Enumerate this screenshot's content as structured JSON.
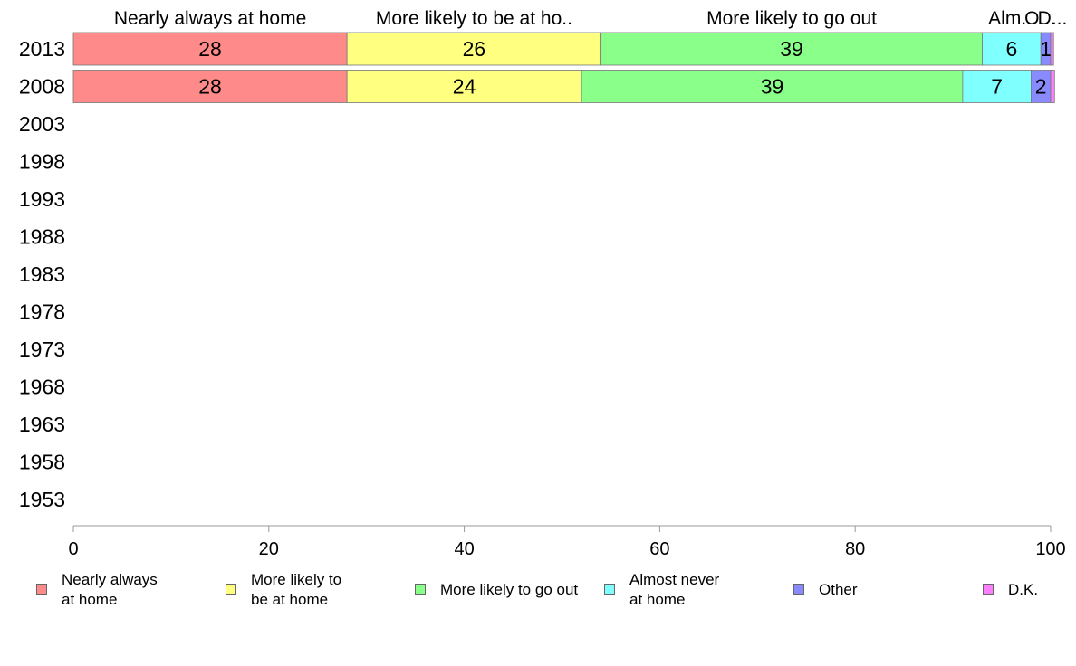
{
  "chart_data": {
    "type": "bar",
    "orientation": "horizontal",
    "stacked": true,
    "categories": [
      "2013",
      "2008",
      "2003",
      "1998",
      "1993",
      "1988",
      "1983",
      "1978",
      "1973",
      "1968",
      "1963",
      "1958",
      "1953"
    ],
    "series": [
      {
        "name": "Nearly always at home",
        "header": "Nearly always at home",
        "color": "#ff8a8a",
        "values": [
          28,
          28,
          null,
          null,
          null,
          null,
          null,
          null,
          null,
          null,
          null,
          null,
          null
        ]
      },
      {
        "name": "More likely to be at home",
        "header": "More likely to be at ho..",
        "color": "#ffff80",
        "values": [
          26,
          24,
          null,
          null,
          null,
          null,
          null,
          null,
          null,
          null,
          null,
          null,
          null
        ]
      },
      {
        "name": "More likely to go out",
        "header": "More likely to go out",
        "color": "#8aff8a",
        "values": [
          39,
          39,
          null,
          null,
          null,
          null,
          null,
          null,
          null,
          null,
          null,
          null,
          null
        ]
      },
      {
        "name": "Almost never at home",
        "header": "Alm...",
        "color": "#80ffff",
        "values": [
          6,
          7,
          null,
          null,
          null,
          null,
          null,
          null,
          null,
          null,
          null,
          null,
          null
        ]
      },
      {
        "name": "Other",
        "header": "O...",
        "color": "#8a8aff",
        "values": [
          1,
          2,
          null,
          null,
          null,
          null,
          null,
          null,
          null,
          null,
          null,
          null,
          null
        ]
      },
      {
        "name": "D.K.",
        "header": "D...",
        "color": "#ff80ff",
        "values": [
          0.3,
          0.4,
          null,
          null,
          null,
          null,
          null,
          null,
          null,
          null,
          null,
          null,
          null
        ]
      }
    ],
    "data_labels": [
      [
        "28",
        "26",
        "39",
        "6",
        "1",
        ""
      ],
      [
        "28",
        "24",
        "39",
        "7",
        "2",
        ""
      ]
    ],
    "xlim": [
      0,
      100
    ],
    "xticks": [
      "0",
      "20",
      "40",
      "60",
      "80",
      "100"
    ],
    "grid": false,
    "legend_position": "bottom"
  },
  "legend": [
    {
      "label": "Nearly always\nat home",
      "color": "#ff8a8a"
    },
    {
      "label": "More likely to\nbe at home",
      "color": "#ffff80"
    },
    {
      "label": "More likely to go out",
      "color": "#8aff8a"
    },
    {
      "label": "Almost never\nat home",
      "color": "#80ffff"
    },
    {
      "label": "Other",
      "color": "#8a8aff"
    },
    {
      "label": "D.K.",
      "color": "#ff80ff"
    }
  ]
}
